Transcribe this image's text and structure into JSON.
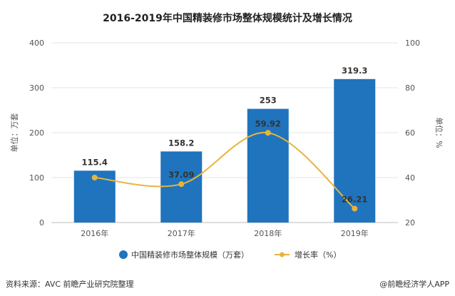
{
  "chart_data": {
    "type": "bar",
    "title": "2016-2019年中国精装修市场整体规模统计及增长情况",
    "categories": [
      "2016年",
      "2017年",
      "2018年",
      "2019年"
    ],
    "series": [
      {
        "name": "中国精装修市场整体规模（万套）",
        "type": "bar",
        "axis": "left",
        "values": [
          115.4,
          158.2,
          253,
          319.3
        ],
        "labels": [
          "115.4",
          "158.2",
          "253",
          "319.3"
        ],
        "color": "#1f74bd"
      },
      {
        "name": "增长率（%）",
        "type": "line",
        "axis": "right",
        "values": [
          40,
          37.09,
          59.92,
          26.21
        ],
        "labels": [
          "",
          "37.09",
          "59.92",
          "26.21"
        ],
        "color": "#e8b43c"
      }
    ],
    "ylabel": "单位：万套",
    "y2label": "单位：%",
    "ylim": [
      0,
      400
    ],
    "y2lim": [
      20,
      100
    ],
    "yticks": [
      "0",
      "100",
      "200",
      "300",
      "400"
    ],
    "y2ticks": [
      "20",
      "40",
      "60",
      "80",
      "100"
    ],
    "grid": true,
    "legend": "bottom-center"
  },
  "footer": {
    "source": "资料来源：AVC 前瞻产业研究院整理",
    "credit": "@前瞻经济学人APP"
  }
}
